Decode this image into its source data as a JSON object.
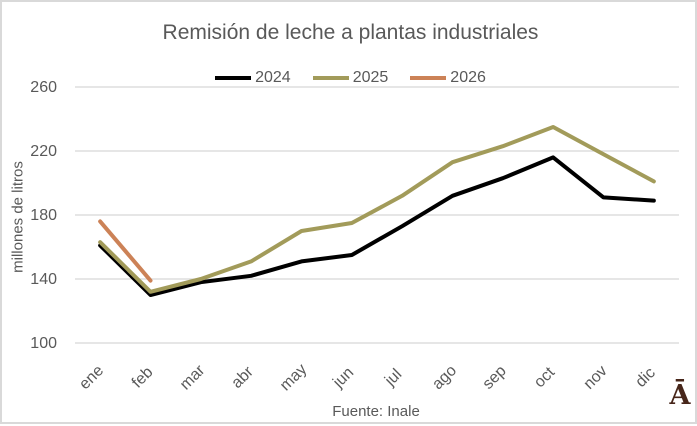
{
  "chart_data": {
    "type": "line",
    "title": "Remisión de leche a plantas industriales",
    "ylabel": "millones de litros",
    "source": "Fuente: Inale",
    "categories": [
      "ene",
      "feb",
      "mar",
      "abr",
      "may",
      "jun",
      "jul",
      "ago",
      "sep",
      "oct",
      "nov",
      "dic"
    ],
    "series": [
      {
        "name": "2024",
        "color": "#000000",
        "values": [
          161,
          130,
          138,
          142,
          151,
          155,
          173,
          192,
          203,
          216,
          191,
          189
        ]
      },
      {
        "name": "2025",
        "color": "#a29b5a",
        "values": [
          163,
          132,
          140,
          151,
          170,
          175,
          192,
          213,
          223,
          235,
          218,
          201
        ]
      },
      {
        "name": "2026",
        "color": "#cc8257",
        "values": [
          176,
          139
        ]
      }
    ],
    "ylim": [
      100,
      260
    ],
    "yticks": [
      260,
      220,
      180,
      140,
      100
    ],
    "grid": true,
    "gridline_color": "#d7d7d7",
    "legend_position": "top"
  },
  "logo": {
    "glyph": "Ā",
    "color": "#47261a"
  }
}
